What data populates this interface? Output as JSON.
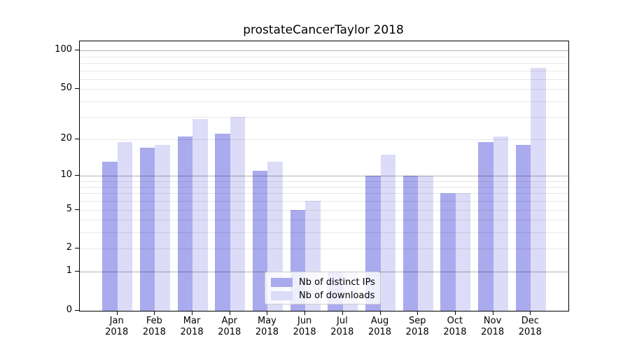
{
  "title": "prostateCancerTaylor 2018",
  "chart_data": {
    "type": "bar",
    "title": "prostateCancerTaylor 2018",
    "categories": [
      "Jan 2018",
      "Feb 2018",
      "Mar 2018",
      "Apr 2018",
      "May 2018",
      "Jun 2018",
      "Jul 2018",
      "Aug 2018",
      "Sep 2018",
      "Oct 2018",
      "Nov 2018",
      "Dec 2018"
    ],
    "x_tick_months": [
      "Jan",
      "Feb",
      "Mar",
      "Apr",
      "May",
      "Jun",
      "Jul",
      "Aug",
      "Sep",
      "Oct",
      "Nov",
      "Dec"
    ],
    "x_tick_year": "2018",
    "series": [
      {
        "name": "Nb of distinct IPs",
        "color": "#aaaaee",
        "values": [
          13,
          17,
          21,
          22,
          11,
          5,
          1,
          10,
          10,
          7,
          19,
          18
        ]
      },
      {
        "name": "Nb of downloads",
        "color": "#dcdcf8",
        "values": [
          19,
          18,
          29,
          30,
          13,
          6,
          1,
          15,
          10,
          7,
          21,
          73
        ]
      }
    ],
    "y_scale": "log1p",
    "y_axis_top_value": 118,
    "y_tick_values": [
      100,
      50,
      20,
      10,
      5,
      2,
      1,
      0
    ],
    "y_tick_labels": [
      "100",
      "50",
      "20",
      "10",
      "5",
      "2",
      "1",
      "0"
    ],
    "major_gridline_values": [
      1,
      10,
      100
    ],
    "minor_gridline_values": [
      2,
      3,
      4,
      5,
      6,
      7,
      8,
      9,
      20,
      30,
      40,
      50,
      60,
      70,
      80,
      90
    ],
    "grid": true,
    "legend_position": "lower center",
    "colors": {
      "distinct_ips_bar": "#aaaaee",
      "downloads_bar": "#dcdcf8",
      "grid_major": "rgba(0,0,0,0.30)",
      "grid_minor": "rgba(0,0,0,0.09)",
      "spine": "#000000",
      "legend_border": "#cccccc",
      "legend_background": "rgba(255,255,255,0.8)",
      "text": "#000000"
    }
  }
}
